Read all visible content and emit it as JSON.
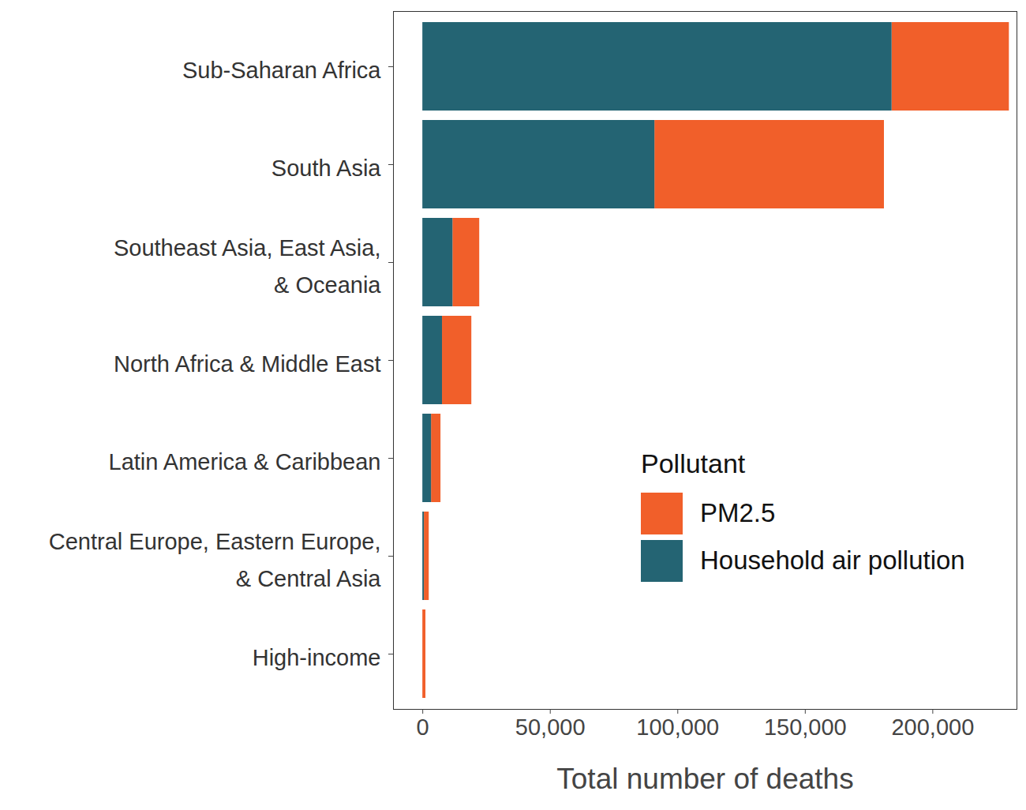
{
  "chart_data": {
    "type": "bar",
    "orientation": "horizontal",
    "stacked": true,
    "xlabel": "Total number of deaths",
    "categories": [
      "Sub-Saharan Africa",
      "South Asia",
      "Southeast Asia, East Asia,\n& Oceania",
      "North Africa & Middle East",
      "Latin America & Caribbean",
      "Central Europe, Eastern Europe,\n& Central Asia",
      "High-income"
    ],
    "series": [
      {
        "name": "PM2.5",
        "color": "#f15f2a",
        "values": [
          46000,
          90000,
          10500,
          11500,
          3700,
          1900,
          1200
        ]
      },
      {
        "name": "Household air pollution",
        "color": "#246473",
        "values": [
          184000,
          91000,
          11800,
          7700,
          3400,
          600,
          0
        ]
      }
    ],
    "legend_title": "Pollutant",
    "legend": "bottom-right",
    "xlim": [
      -11500,
      233000
    ],
    "xticks": [
      0,
      {
        "value": 50000,
        "label": "50,000"
      },
      {
        "value": 100000,
        "label": "100,000"
      },
      {
        "value": 150000,
        "label": "150,000"
      },
      {
        "value": 200000,
        "label": "200,000"
      }
    ],
    "grid": false
  }
}
